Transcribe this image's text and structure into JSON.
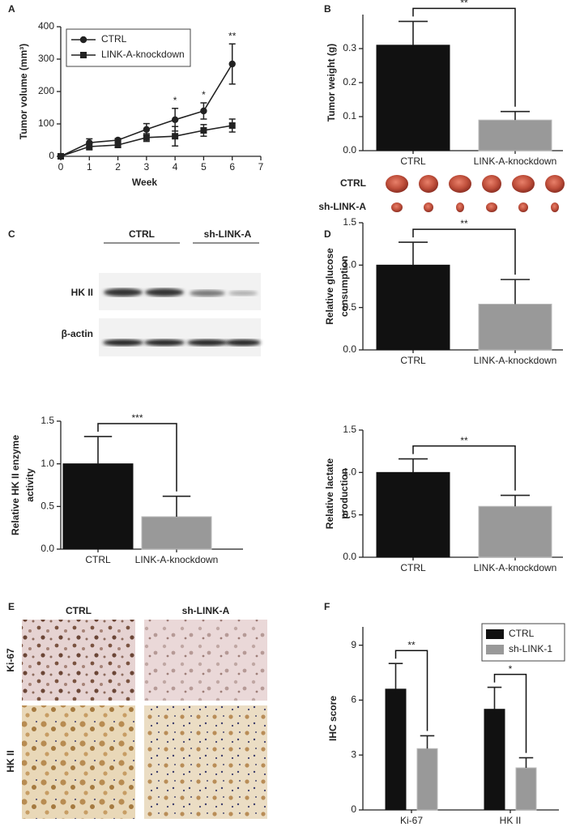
{
  "figure": {
    "panel_letters": [
      "A",
      "B",
      "C",
      "D",
      "E",
      "F"
    ],
    "tumors": {
      "rows": [
        "CTRL",
        "sh-LINK-A"
      ]
    },
    "blot": {
      "groups": [
        "CTRL",
        "sh-LINK-A"
      ],
      "rows": [
        "HK II",
        "β-actin"
      ]
    },
    "ihc": {
      "columns": [
        "CTRL",
        "sh-LINK-A"
      ],
      "rows": [
        "Ki-67",
        "HK II"
      ]
    }
  },
  "chart_data": [
    {
      "type": "line",
      "x": [
        0,
        1,
        2,
        3,
        4,
        5,
        6
      ],
      "xlabel": "Week",
      "ylabel": "Tumor volume (mm³)",
      "series": [
        {
          "name": "CTRL",
          "color": "#222222",
          "marker": "circle",
          "values": [
            0,
            42,
            50,
            83,
            113,
            140,
            285
          ],
          "errors": [
            0,
            12,
            5,
            18,
            35,
            25,
            62
          ]
        },
        {
          "name": "LINK-A-knockdown",
          "color": "#222222",
          "marker": "square",
          "values": [
            0,
            30,
            35,
            58,
            62,
            80,
            95
          ],
          "errors": [
            0,
            10,
            8,
            12,
            30,
            18,
            20
          ]
        }
      ],
      "xlim": [
        0,
        7
      ],
      "xticks": [
        0,
        1,
        2,
        3,
        4,
        5,
        6,
        7
      ],
      "ylim": [
        0,
        400
      ],
      "yticks": [
        0,
        100,
        200,
        300,
        400
      ],
      "annotations": [
        {
          "x": 4,
          "text": "*"
        },
        {
          "x": 5,
          "text": "*"
        },
        {
          "x": 6,
          "text": "**"
        }
      ],
      "legend": "upper left"
    },
    {
      "type": "bar",
      "ylabel": "Tumor weight (g)",
      "categories": [
        "CTRL",
        "LINK-A-knockdown"
      ],
      "values": [
        0.31,
        0.09
      ],
      "errors": [
        0.07,
        0.025
      ],
      "colors": [
        "#111111",
        "#999999"
      ],
      "ylim": [
        0,
        0.4
      ],
      "yticks": [
        {
          "value": 0,
          "label": "0.0"
        },
        0.1,
        0.2,
        0.3
      ],
      "annotation": "**"
    },
    {
      "type": "bar",
      "ylabel": [
        "Relative HK II enzyme",
        "activity"
      ],
      "categories": [
        "CTRL",
        "LINK-A-knockdown"
      ],
      "values": [
        1,
        0.38
      ],
      "errors": [
        0.32,
        0.24
      ],
      "colors": [
        "#111111",
        "#999999"
      ],
      "ylim": [
        0,
        1.5
      ],
      "yticks": [
        {
          "value": 0,
          "label": "0.0"
        },
        0.5,
        {
          "value": 1,
          "label": "1.0"
        },
        1.5
      ],
      "annotation": "***"
    },
    {
      "type": "bar",
      "ylabel": [
        "Relative glucose",
        "consumption"
      ],
      "categories": [
        "CTRL",
        "LINK-A-knockdown"
      ],
      "values": [
        1,
        0.54
      ],
      "errors": [
        0.27,
        0.29
      ],
      "colors": [
        "#111111",
        "#999999"
      ],
      "ylim": [
        0,
        1.5
      ],
      "yticks": [
        {
          "value": 0,
          "label": "0.0"
        },
        0.5,
        {
          "value": 1,
          "label": "1.0"
        },
        1.5
      ],
      "annotation": "**"
    },
    {
      "type": "bar",
      "ylabel": [
        "Relative lactate",
        "production"
      ],
      "categories": [
        "CTRL",
        "LINK-A-knockdown"
      ],
      "values": [
        1,
        0.6
      ],
      "errors": [
        0.16,
        0.13
      ],
      "colors": [
        "#111111",
        "#999999"
      ],
      "ylim": [
        0,
        1.5
      ],
      "yticks": [
        {
          "value": 0,
          "label": "0.0"
        },
        0.5,
        {
          "value": 1,
          "label": "1.0"
        },
        1.5
      ],
      "annotation": "**"
    },
    {
      "type": "bar",
      "ylabel": "IHC score",
      "categories": [
        "Ki-67",
        "HK II"
      ],
      "series": [
        {
          "name": "CTRL",
          "color": "#111111",
          "values": [
            6.6,
            5.5
          ],
          "errors": [
            1.4,
            1.2
          ]
        },
        {
          "name": "sh-LINK-1",
          "color": "#999999",
          "values": [
            3.35,
            2.3
          ],
          "errors": [
            0.7,
            0.55
          ]
        }
      ],
      "ylim": [
        0,
        10
      ],
      "yticks": [
        0,
        3,
        6,
        9
      ],
      "annotations": [
        "**",
        "*"
      ],
      "legend": "upper right"
    }
  ]
}
